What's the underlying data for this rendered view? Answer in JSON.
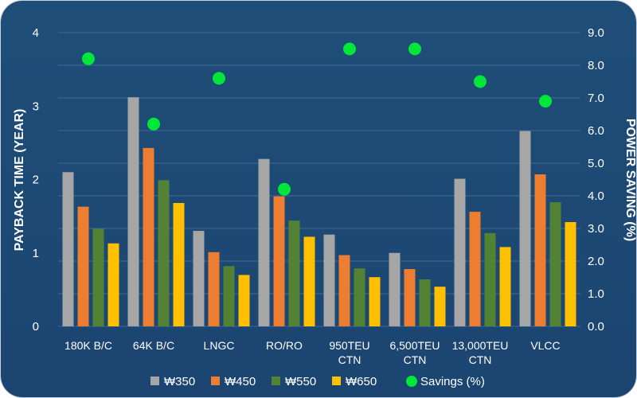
{
  "chart_data": {
    "type": "bar",
    "title": "",
    "categories": [
      "180K B/C",
      "64K B/C",
      "LNGC",
      "RO/RO",
      "950TEU CTN",
      "6,500TEU CTN",
      "13,000TEU CTN",
      "VLCC"
    ],
    "category_lines": [
      [
        "180K B/C"
      ],
      [
        "64K B/C"
      ],
      [
        "LNGC"
      ],
      [
        "RO/RO"
      ],
      [
        "950TEU",
        "CTN"
      ],
      [
        "6,500TEU",
        "CTN"
      ],
      [
        "13,000TEU",
        "CTN"
      ],
      [
        "VLCC"
      ]
    ],
    "series": [
      {
        "name": "₩350",
        "axis": "left",
        "color": "#a6a6a6",
        "values": [
          2.1,
          3.12,
          1.3,
          2.28,
          1.25,
          1.0,
          2.01,
          2.66
        ]
      },
      {
        "name": "₩450",
        "axis": "left",
        "color": "#ed7d31",
        "values": [
          1.63,
          2.43,
          1.01,
          1.77,
          0.97,
          0.78,
          1.56,
          2.07
        ]
      },
      {
        "name": "₩550",
        "axis": "left",
        "color": "#548235",
        "values": [
          1.33,
          1.99,
          0.82,
          1.44,
          0.79,
          0.64,
          1.27,
          1.69
        ]
      },
      {
        "name": "₩650",
        "axis": "left",
        "color": "#ffc000",
        "values": [
          1.13,
          1.68,
          0.7,
          1.22,
          0.67,
          0.54,
          1.08,
          1.42
        ]
      },
      {
        "name": "Savings (%)",
        "axis": "right",
        "type": "scatter",
        "color": "#00e639",
        "values": [
          8.2,
          6.2,
          7.6,
          4.2,
          8.5,
          8.5,
          7.5,
          6.9
        ]
      }
    ],
    "ylabel": "PAYBACK TIME (YEAR)",
    "y2label": "POWER SAVING (%)",
    "ylim": [
      0,
      4
    ],
    "yticks": [
      "0",
      "1",
      "2",
      "3",
      "4"
    ],
    "y2lim": [
      0,
      9
    ],
    "y2ticks": [
      "0.0",
      "1.0",
      "2.0",
      "3.0",
      "4.0",
      "5.0",
      "6.0",
      "7.0",
      "8.0",
      "9.0"
    ],
    "grid": true,
    "legend_position": "bottom"
  },
  "colors": {
    "background_top": "#1f4e79",
    "background_bottom": "#1b4570",
    "gridline": "#3f6a93"
  }
}
